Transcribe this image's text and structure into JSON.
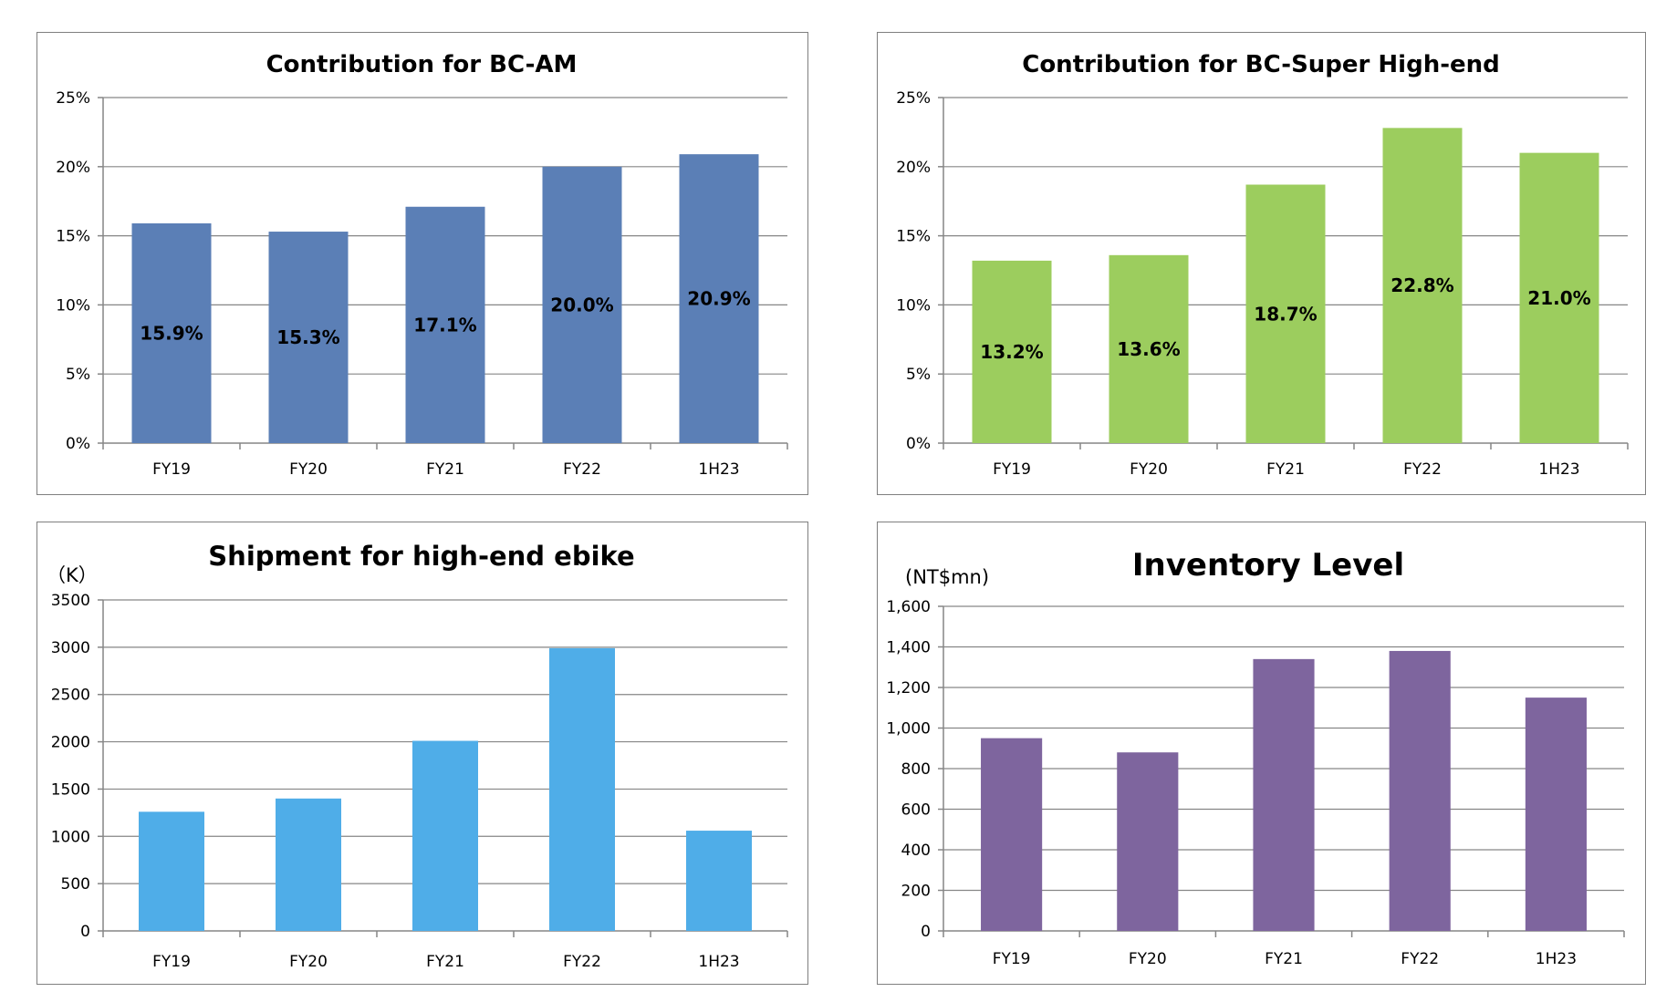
{
  "charts_meta": [
    {
      "id": "c1",
      "color": "#5b7fb6",
      "format": "pct"
    },
    {
      "id": "c2",
      "color": "#9ccd5e",
      "format": "pct"
    },
    {
      "id": "c3",
      "color": "#4fade8",
      "format": "int"
    },
    {
      "id": "c4",
      "color": "#7e659e",
      "format": "comma"
    }
  ],
  "chart_data": [
    {
      "type": "bar",
      "title": "Contribution for BC-AM",
      "categories": [
        "FY19",
        "FY20",
        "FY21",
        "FY22",
        "1H23"
      ],
      "values": [
        15.9,
        15.3,
        17.1,
        20.0,
        20.9
      ],
      "data_labels": [
        "15.9%",
        "15.3%",
        "17.1%",
        "20.0%",
        "20.9%"
      ],
      "yticks": [
        "0%",
        "5%",
        "10%",
        "15%",
        "20%",
        "25%"
      ],
      "ylim": [
        0,
        25
      ],
      "ylabel": "",
      "grid": true,
      "legend": "none"
    },
    {
      "type": "bar",
      "title": "Contribution for BC-Super High-end",
      "categories": [
        "FY19",
        "FY20",
        "FY21",
        "FY22",
        "1H23"
      ],
      "values": [
        13.2,
        13.6,
        18.7,
        22.8,
        21.0
      ],
      "data_labels": [
        "13.2%",
        "13.6%",
        "18.7%",
        "22.8%",
        "21.0%"
      ],
      "yticks": [
        "0%",
        "5%",
        "10%",
        "15%",
        "20%",
        "25%"
      ],
      "ylim": [
        0,
        25
      ],
      "ylabel": "",
      "grid": true,
      "legend": "none"
    },
    {
      "type": "bar",
      "title": "Shipment for high-end ebike",
      "categories": [
        "FY19",
        "FY20",
        "FY21",
        "FY22",
        "1H23"
      ],
      "values": [
        1260,
        1400,
        2010,
        2990,
        1060
      ],
      "data_labels": [],
      "yticks": [
        "0",
        "500",
        "1000",
        "1500",
        "2000",
        "2500",
        "3000",
        "3500"
      ],
      "ylim": [
        0,
        3500
      ],
      "ylabel": "（K）",
      "grid": true,
      "legend": "none"
    },
    {
      "type": "bar",
      "title": "Inventory Level",
      "categories": [
        "FY19",
        "FY20",
        "FY21",
        "FY22",
        "1H23"
      ],
      "values": [
        950,
        880,
        1340,
        1380,
        1150
      ],
      "data_labels": [],
      "yticks": [
        "0",
        "200",
        "400",
        "600",
        "800",
        "1,000",
        "1,200",
        "1,400",
        "1,600"
      ],
      "ylim": [
        0,
        1600
      ],
      "ylabel": "(NT$mn)",
      "grid": true,
      "legend": "none"
    }
  ]
}
